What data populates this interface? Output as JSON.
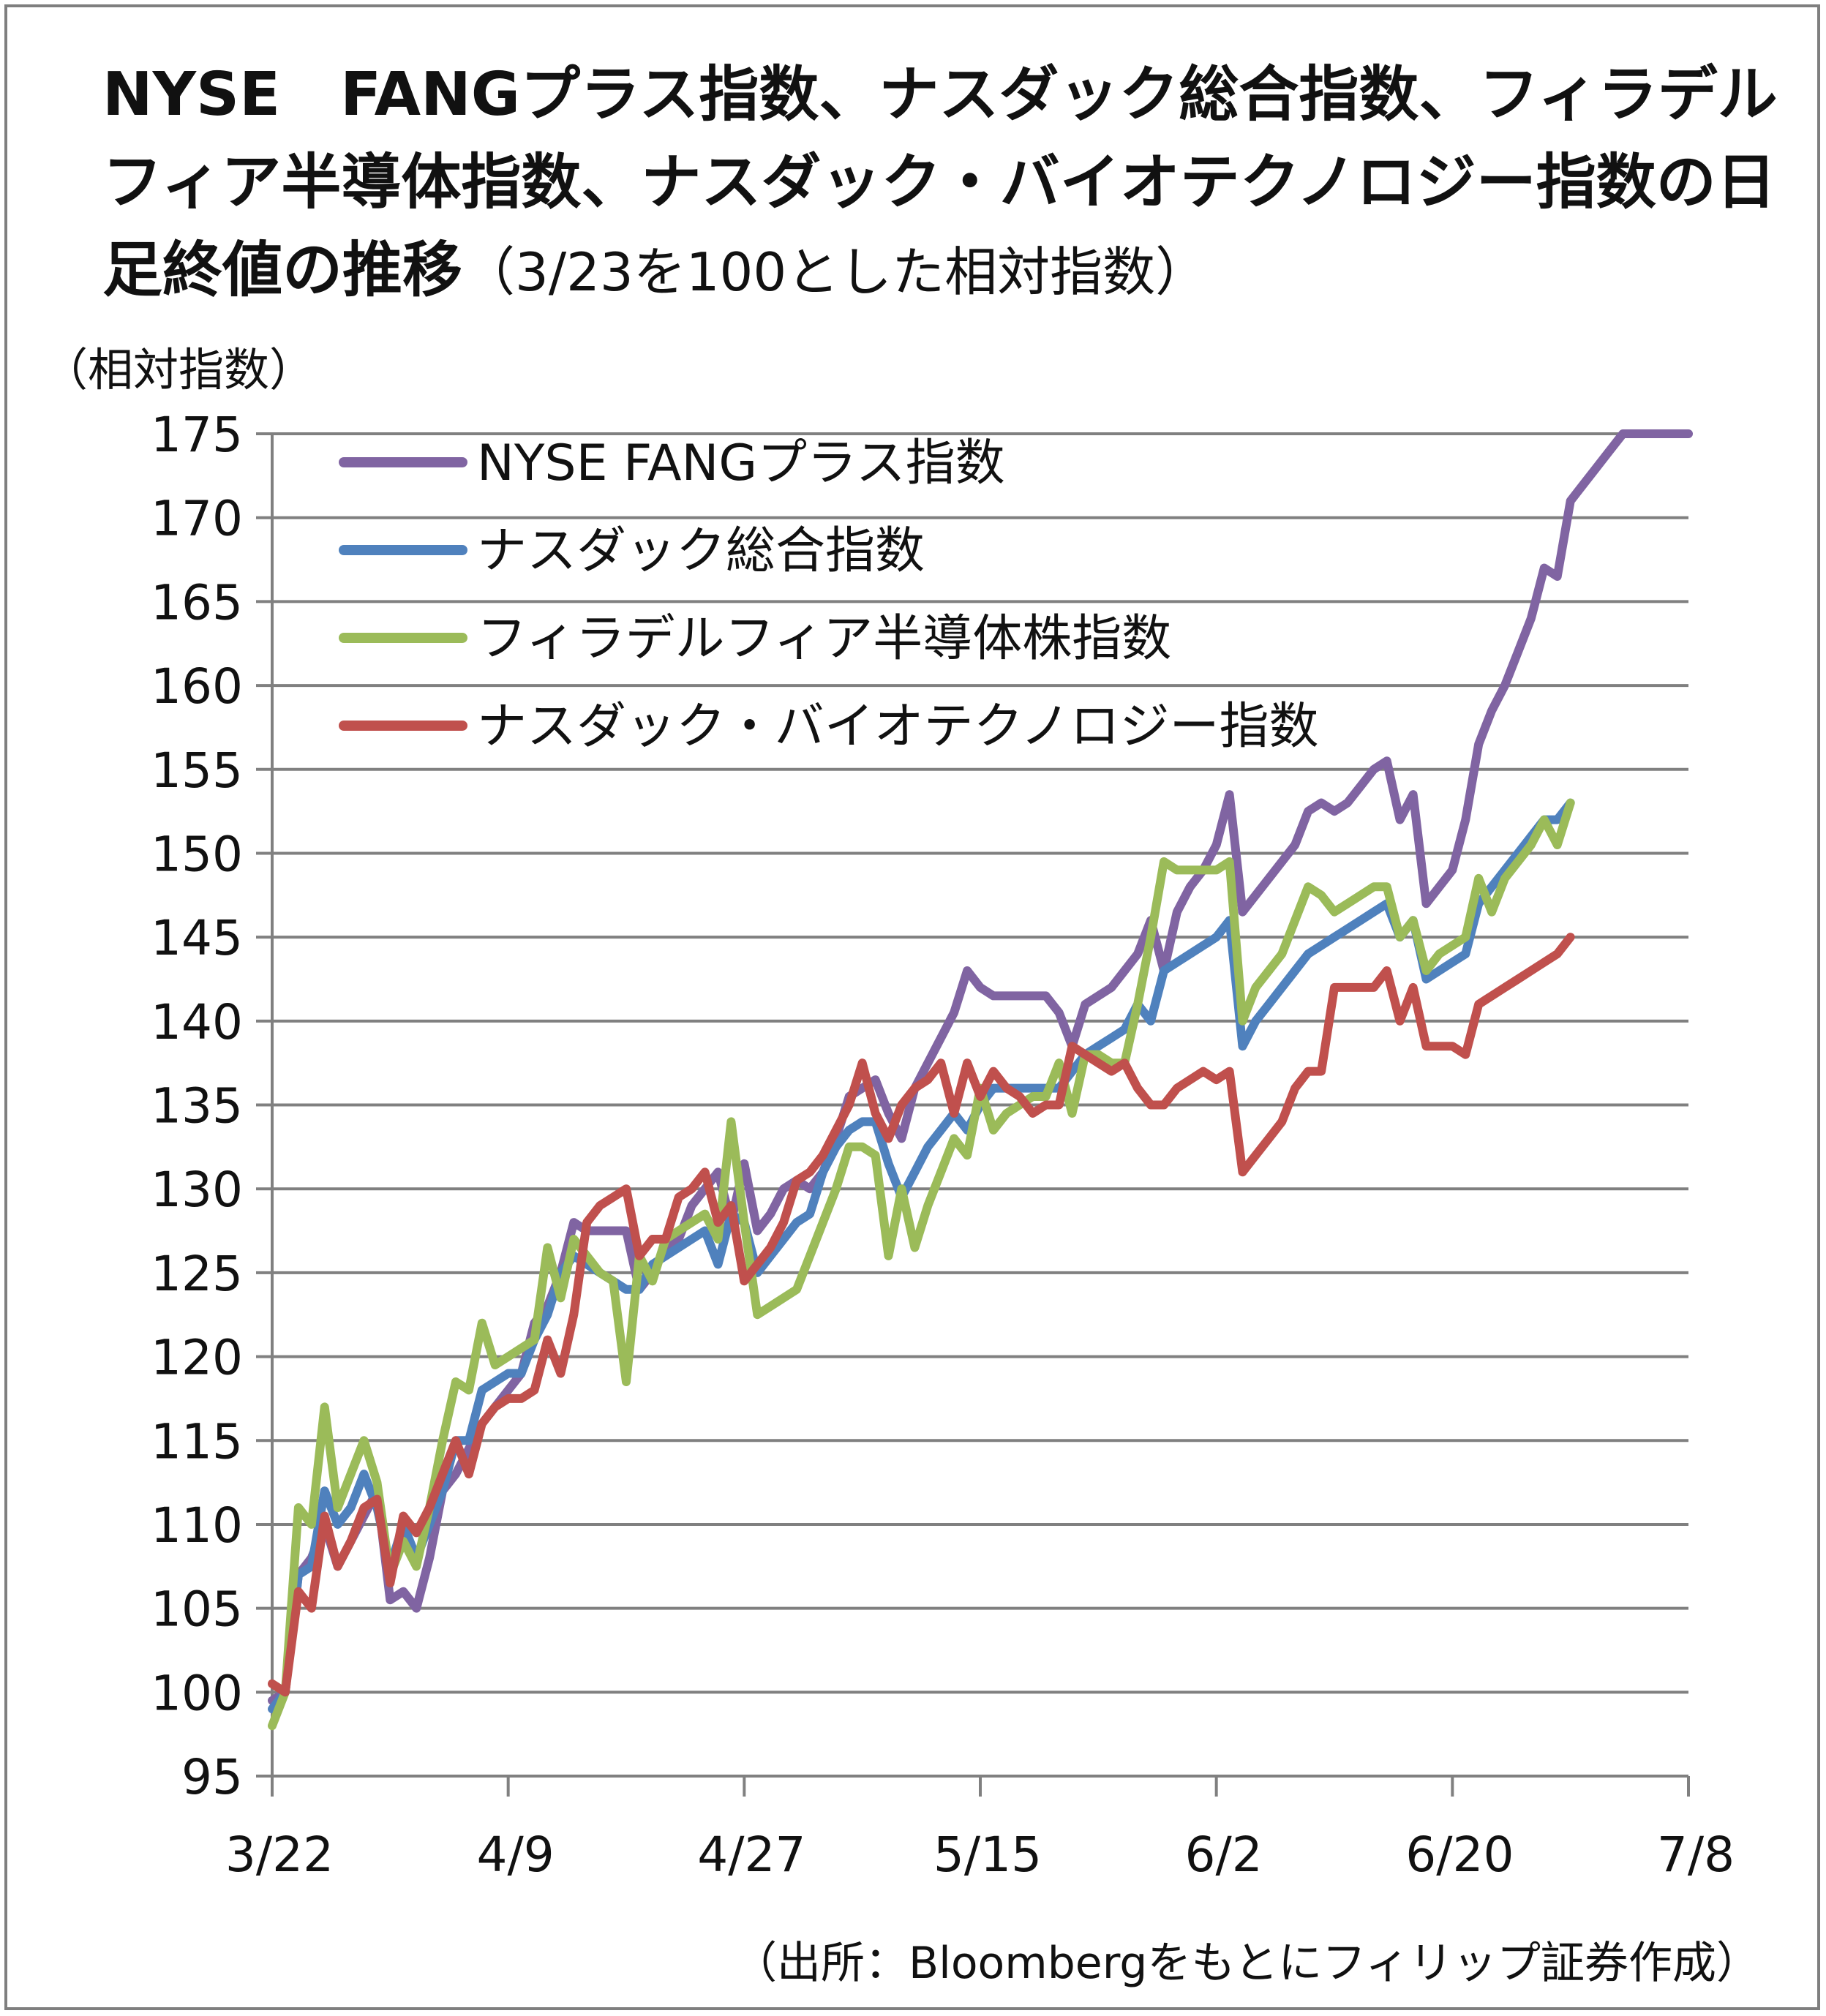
{
  "title": {
    "main": "NYSE　FANGプラス指数、ナスダック総合指数、フィラデルフィア半導体指数、ナスダック・バイオテクノロジー指数の日足終値の推移",
    "sub": "（3/23を100とした相対指数）"
  },
  "unit_label": "（相対指数）",
  "source": "（出所：Bloombergをもとにフィリップ証券作成）",
  "chart_data": {
    "type": "line",
    "ylim": [
      95,
      175
    ],
    "ytick_step": 5,
    "y_ticks": [
      "95",
      "100",
      "105",
      "110",
      "115",
      "120",
      "125",
      "130",
      "135",
      "140",
      "145",
      "150",
      "155",
      "160",
      "165",
      "170",
      "175"
    ],
    "x_tick_labels": [
      "3/22",
      "4/9",
      "4/27",
      "5/15",
      "6/2",
      "6/20",
      "7/8"
    ],
    "grid": true,
    "legend_position": "top-left",
    "series": [
      {
        "name": "NYSE FANGプラス指数",
        "color": "#8064a2",
        "x": [
          0,
          1,
          2,
          3,
          4,
          5,
          6,
          7,
          8,
          9,
          10,
          11,
          12,
          13,
          14,
          15,
          16,
          17,
          18,
          19,
          20,
          21,
          22,
          23,
          24,
          25,
          26,
          27,
          28,
          29,
          30,
          31,
          32,
          33,
          34,
          35,
          36,
          37,
          38,
          39,
          40,
          41,
          42,
          43,
          44,
          45,
          46,
          47,
          48,
          49,
          50,
          51,
          52,
          53,
          54,
          55,
          56,
          57,
          58,
          59,
          60,
          61,
          62,
          63,
          64,
          65,
          66,
          67,
          68,
          69,
          70,
          71,
          72,
          73,
          74,
          75,
          76,
          77,
          78,
          79,
          80,
          81,
          82,
          83,
          84,
          85,
          86,
          87,
          88,
          89,
          90,
          91,
          92,
          93,
          94,
          95,
          96,
          97,
          98,
          99,
          100,
          101,
          102,
          103,
          104,
          105,
          106,
          107,
          108
        ],
        "values": [
          99.5,
          100,
          107,
          108,
          110,
          107.5,
          109,
          110.5,
          112,
          105.5,
          106,
          105,
          108,
          112,
          113,
          114.5,
          116,
          117,
          118,
          119,
          122,
          123,
          125,
          128,
          127.5,
          127.5,
          127.5,
          127.5,
          124,
          125,
          126.5,
          127,
          129,
          130,
          131,
          128,
          131.5,
          127.5,
          128.5,
          130,
          130.5,
          130,
          131,
          133,
          135.5,
          136,
          136.5,
          134.5,
          133,
          136,
          137.5,
          139,
          140.5,
          143,
          142,
          141.5,
          141.5,
          141.5,
          141.5,
          141.5,
          140.5,
          138.5,
          141,
          141.5,
          142,
          143,
          144,
          146,
          143,
          146.5,
          148,
          149,
          150.5,
          153.5,
          146.5,
          147.5,
          148.5,
          149.5,
          150.5,
          152.5,
          153,
          152.5,
          153,
          154,
          155,
          155.5,
          152,
          153.5,
          147,
          148,
          149,
          152,
          156.5,
          158.5,
          160,
          162,
          164,
          167,
          166.5,
          171,
          172,
          173,
          174,
          175,
          175,
          175,
          175,
          175,
          175
        ],
        "x_end": 108
      },
      {
        "name": "ナスダック総合指数",
        "color": "#4f81bd",
        "values": [
          99,
          100,
          107,
          107.5,
          112,
          110,
          111,
          113,
          111,
          107.5,
          110,
          108,
          110,
          112,
          115,
          115,
          118,
          118.5,
          119,
          119,
          121,
          122.5,
          125,
          126,
          125.5,
          125,
          124.5,
          124,
          124,
          125.5,
          126,
          126.5,
          127,
          127.5,
          125.5,
          128.5,
          128,
          125,
          126,
          127,
          128,
          128.5,
          131,
          132.5,
          133.5,
          134,
          134,
          131.5,
          129.5,
          131,
          132.5,
          133.5,
          134.5,
          133.5,
          135,
          136,
          136,
          136,
          136,
          136,
          136,
          137,
          138,
          138.5,
          139,
          139.5,
          141,
          140,
          143,
          143.5,
          144,
          144.5,
          145,
          146,
          138.5,
          140,
          141,
          142,
          143,
          144,
          144.5,
          145,
          145.5,
          146,
          146.5,
          147,
          145,
          146,
          142.5,
          143,
          143.5,
          144,
          147,
          148,
          149,
          150,
          151,
          152,
          152,
          153
        ],
        "x_end": 99
      },
      {
        "name": "フィラデルフィア半導体株指数",
        "color": "#9bbb59",
        "values": [
          98,
          100,
          111,
          110,
          117,
          111,
          113,
          115,
          112.5,
          107,
          109,
          107.5,
          111,
          115,
          118.5,
          118,
          122,
          119.5,
          120,
          120.5,
          121,
          126.5,
          123.5,
          127,
          126,
          125,
          124.5,
          118.5,
          126,
          124.5,
          127,
          127.5,
          128,
          128.5,
          127,
          134,
          128,
          122.5,
          123,
          123.5,
          124,
          126,
          128,
          130,
          132.5,
          132.5,
          132,
          126,
          130,
          126.5,
          129,
          131,
          133,
          132,
          136,
          133.5,
          134.5,
          135,
          135.5,
          135.5,
          137.5,
          134.5,
          138,
          138,
          137.5,
          137.5,
          141,
          145,
          149.5,
          149,
          149,
          149,
          149,
          149.5,
          140,
          142,
          143,
          144,
          146,
          148,
          147.5,
          146.5,
          147,
          147.5,
          148,
          148,
          145,
          146,
          143,
          144,
          144.5,
          145,
          148.5,
          146.5,
          148.5,
          149.5,
          150.5,
          152,
          150.5,
          153
        ],
        "x_end": 99
      },
      {
        "name": "ナスダック・バイオテクノロジー指数",
        "color": "#c0504d",
        "values": [
          100.5,
          100,
          106,
          105,
          110.5,
          107.5,
          109,
          111,
          111.5,
          106.5,
          110.5,
          109.5,
          111,
          113,
          115,
          113,
          116,
          117,
          117.5,
          117.5,
          118,
          121,
          119,
          122.5,
          128,
          129,
          129.5,
          130,
          126,
          127,
          127,
          129.5,
          130,
          131,
          128,
          129,
          124.5,
          125.5,
          126.5,
          128,
          130.5,
          131,
          132,
          133.5,
          135,
          137.5,
          134.5,
          133,
          135,
          136,
          136.5,
          137.5,
          134.5,
          137.5,
          135.5,
          137,
          136,
          135.5,
          134.5,
          135,
          135,
          138.5,
          138,
          137.5,
          137,
          137.5,
          136,
          135,
          135,
          136,
          136.5,
          137,
          136.5,
          137,
          131,
          132,
          133,
          134,
          136,
          137,
          137,
          142,
          142,
          142,
          142,
          143,
          140,
          142,
          138.5,
          138.5,
          138.5,
          138,
          141,
          141.5,
          142,
          142.5,
          143,
          143.5,
          144,
          145
        ],
        "x_end": 99
      }
    ]
  }
}
